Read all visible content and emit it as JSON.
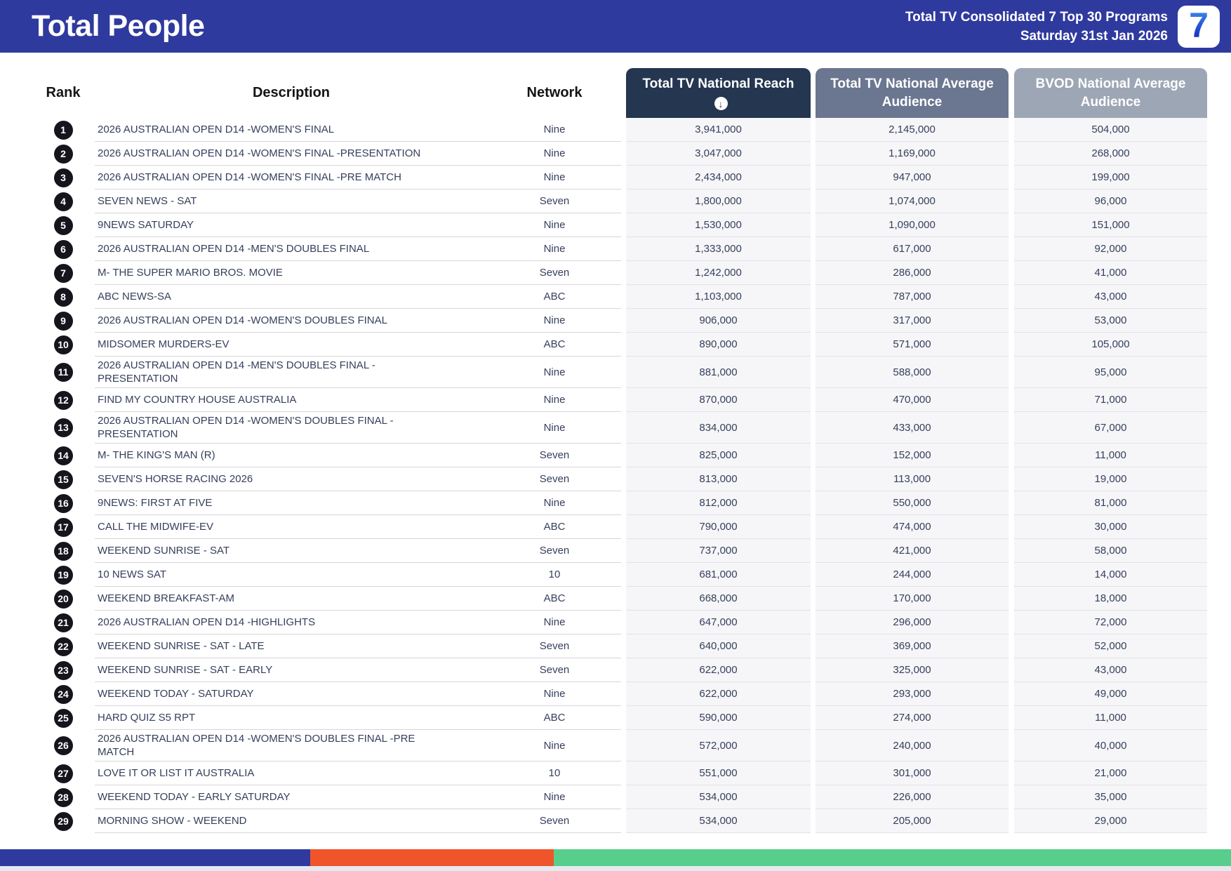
{
  "header": {
    "title": "Total People",
    "subtitle_line1": "Total TV Consolidated 7 Top 30 Programs",
    "subtitle_line2": "Saturday 31st Jan 2026",
    "logo_text": "7"
  },
  "table": {
    "columns": {
      "rank": "Rank",
      "description": "Description",
      "network": "Network",
      "reach": "Total TV National Reach",
      "avg": "Total TV National Average Audience",
      "bvod": "BVOD National Average Audience"
    },
    "sort": {
      "column": "Total TV National Reach",
      "direction": "descending",
      "icon": "↓"
    },
    "rows": [
      {
        "rank": 1,
        "description": "2026 AUSTRALIAN OPEN D14 -WOMEN'S FINAL",
        "network": "Nine",
        "reach": "3,941,000",
        "avg": "2,145,000",
        "bvod": "504,000"
      },
      {
        "rank": 2,
        "description": "2026 AUSTRALIAN OPEN D14 -WOMEN'S FINAL -PRESENTATION",
        "network": "Nine",
        "reach": "3,047,000",
        "avg": "1,169,000",
        "bvod": "268,000"
      },
      {
        "rank": 3,
        "description": "2026 AUSTRALIAN OPEN D14 -WOMEN'S FINAL -PRE MATCH",
        "network": "Nine",
        "reach": "2,434,000",
        "avg": "947,000",
        "bvod": "199,000"
      },
      {
        "rank": 4,
        "description": "SEVEN NEWS - SAT",
        "network": "Seven",
        "reach": "1,800,000",
        "avg": "1,074,000",
        "bvod": "96,000"
      },
      {
        "rank": 5,
        "description": "9NEWS SATURDAY",
        "network": "Nine",
        "reach": "1,530,000",
        "avg": "1,090,000",
        "bvod": "151,000"
      },
      {
        "rank": 6,
        "description": "2026 AUSTRALIAN OPEN D14 -MEN'S DOUBLES FINAL",
        "network": "Nine",
        "reach": "1,333,000",
        "avg": "617,000",
        "bvod": "92,000"
      },
      {
        "rank": 7,
        "description": "M- THE SUPER MARIO BROS. MOVIE",
        "network": "Seven",
        "reach": "1,242,000",
        "avg": "286,000",
        "bvod": "41,000"
      },
      {
        "rank": 8,
        "description": "ABC NEWS-SA",
        "network": "ABC",
        "reach": "1,103,000",
        "avg": "787,000",
        "bvod": "43,000"
      },
      {
        "rank": 9,
        "description": "2026 AUSTRALIAN OPEN D14 -WOMEN'S DOUBLES FINAL",
        "network": "Nine",
        "reach": "906,000",
        "avg": "317,000",
        "bvod": "53,000"
      },
      {
        "rank": 10,
        "description": "MIDSOMER MURDERS-EV",
        "network": "ABC",
        "reach": "890,000",
        "avg": "571,000",
        "bvod": "105,000"
      },
      {
        "rank": 11,
        "description": "2026 AUSTRALIAN OPEN D14 -MEN'S DOUBLES FINAL - PRESENTATION",
        "network": "Nine",
        "reach": "881,000",
        "avg": "588,000",
        "bvod": "95,000"
      },
      {
        "rank": 12,
        "description": "FIND MY COUNTRY HOUSE AUSTRALIA",
        "network": "Nine",
        "reach": "870,000",
        "avg": "470,000",
        "bvod": "71,000"
      },
      {
        "rank": 13,
        "description": "2026 AUSTRALIAN OPEN D14 -WOMEN'S DOUBLES FINAL - PRESENTATION",
        "network": "Nine",
        "reach": "834,000",
        "avg": "433,000",
        "bvod": "67,000"
      },
      {
        "rank": 14,
        "description": "M- THE KING'S MAN (R)",
        "network": "Seven",
        "reach": "825,000",
        "avg": "152,000",
        "bvod": "11,000"
      },
      {
        "rank": 15,
        "description": "SEVEN'S HORSE RACING 2026",
        "network": "Seven",
        "reach": "813,000",
        "avg": "113,000",
        "bvod": "19,000"
      },
      {
        "rank": 16,
        "description": "9NEWS: FIRST AT FIVE",
        "network": "Nine",
        "reach": "812,000",
        "avg": "550,000",
        "bvod": "81,000"
      },
      {
        "rank": 17,
        "description": "CALL THE MIDWIFE-EV",
        "network": "ABC",
        "reach": "790,000",
        "avg": "474,000",
        "bvod": "30,000"
      },
      {
        "rank": 18,
        "description": "WEEKEND SUNRISE - SAT",
        "network": "Seven",
        "reach": "737,000",
        "avg": "421,000",
        "bvod": "58,000"
      },
      {
        "rank": 19,
        "description": "10 NEWS SAT",
        "network": "10",
        "reach": "681,000",
        "avg": "244,000",
        "bvod": "14,000"
      },
      {
        "rank": 20,
        "description": "WEEKEND BREAKFAST-AM",
        "network": "ABC",
        "reach": "668,000",
        "avg": "170,000",
        "bvod": "18,000"
      },
      {
        "rank": 21,
        "description": "2026 AUSTRALIAN OPEN D14 -HIGHLIGHTS",
        "network": "Nine",
        "reach": "647,000",
        "avg": "296,000",
        "bvod": "72,000"
      },
      {
        "rank": 22,
        "description": "WEEKEND SUNRISE - SAT - LATE",
        "network": "Seven",
        "reach": "640,000",
        "avg": "369,000",
        "bvod": "52,000"
      },
      {
        "rank": 23,
        "description": "WEEKEND SUNRISE - SAT - EARLY",
        "network": "Seven",
        "reach": "622,000",
        "avg": "325,000",
        "bvod": "43,000"
      },
      {
        "rank": 24,
        "description": "WEEKEND TODAY - SATURDAY",
        "network": "Nine",
        "reach": "622,000",
        "avg": "293,000",
        "bvod": "49,000"
      },
      {
        "rank": 25,
        "description": "HARD QUIZ S5 RPT",
        "network": "ABC",
        "reach": "590,000",
        "avg": "274,000",
        "bvod": "11,000"
      },
      {
        "rank": 26,
        "description": "2026 AUSTRALIAN OPEN D14 -WOMEN'S DOUBLES FINAL -PRE MATCH",
        "network": "Nine",
        "reach": "572,000",
        "avg": "240,000",
        "bvod": "40,000"
      },
      {
        "rank": 27,
        "description": "LOVE IT OR LIST IT AUSTRALIA",
        "network": "10",
        "reach": "551,000",
        "avg": "301,000",
        "bvod": "21,000"
      },
      {
        "rank": 28,
        "description": "WEEKEND TODAY - EARLY SATURDAY",
        "network": "Nine",
        "reach": "534,000",
        "avg": "226,000",
        "bvod": "35,000"
      },
      {
        "rank": 29,
        "description": "MORNING SHOW - WEEKEND",
        "network": "Seven",
        "reach": "534,000",
        "avg": "205,000",
        "bvod": "29,000"
      }
    ]
  },
  "colors": {
    "brand_indigo": "#2f3a9e",
    "reach_header": "#243650",
    "avg_header": "#6b7690",
    "bvod_header": "#9da6b5"
  },
  "footer_bar": {
    "segments": [
      {
        "name": "indigo",
        "color": "#2f3a9e",
        "width": "25.2%"
      },
      {
        "name": "orange",
        "color": "#f0542a",
        "width": "19.8%"
      },
      {
        "name": "green",
        "color": "#58ce8c",
        "width": "55.0%"
      }
    ]
  }
}
